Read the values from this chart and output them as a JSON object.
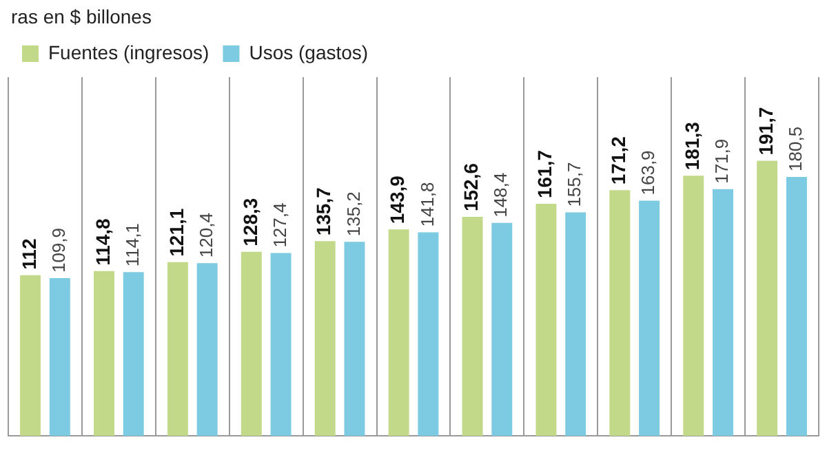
{
  "chart_data": {
    "type": "bar",
    "title": "ras en $ billones",
    "categories": [
      null,
      null,
      null,
      null,
      null,
      null,
      null,
      null,
      null,
      null,
      null
    ],
    "series": [
      {
        "name": "Fuentes (ingresos)",
        "color": "#c3d98a",
        "values": [
          112,
          114.8,
          121.1,
          128.3,
          135.7,
          143.9,
          152.6,
          161.7,
          171.2,
          181.3,
          191.7
        ],
        "value_labels": [
          "112",
          "114,8",
          "121,1",
          "128,3",
          "135,7",
          "143,9",
          "152,6",
          "161,7",
          "171,2",
          "181,3",
          "191,7"
        ]
      },
      {
        "name": "Usos (gastos)",
        "color": "#7ccbe2",
        "values": [
          109.9,
          114.1,
          120.4,
          127.4,
          135.2,
          141.8,
          148.4,
          155.7,
          163.9,
          171.9,
          180.5
        ],
        "value_labels": [
          "109,9",
          "114,1",
          "120,4",
          "127,4",
          "135,2",
          "141,8",
          "148,4",
          "155,7",
          "163,9",
          "171,9",
          "180,5"
        ]
      }
    ],
    "grid": "x",
    "legend": "top left"
  }
}
